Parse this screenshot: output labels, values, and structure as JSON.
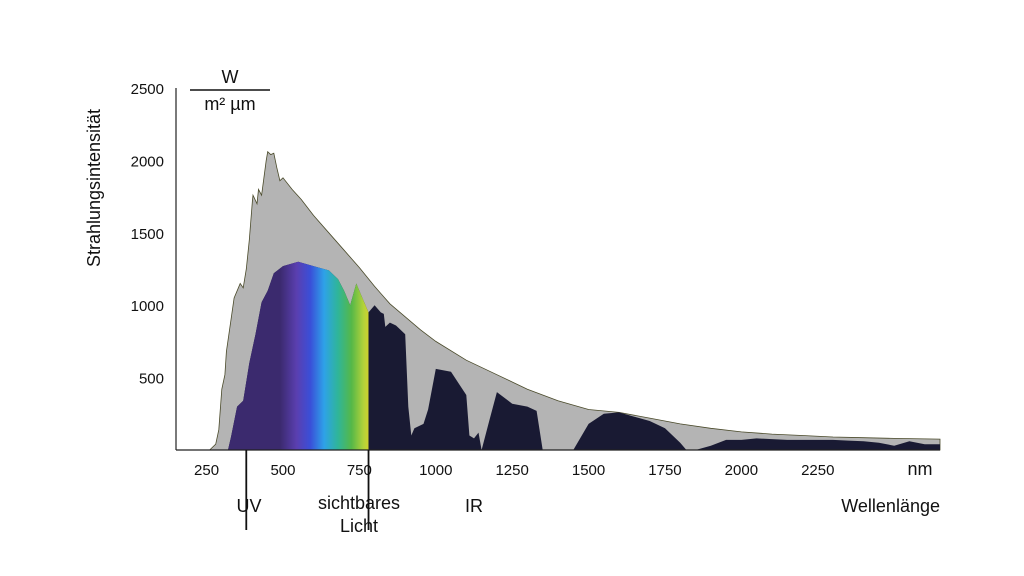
{
  "chart_data": {
    "type": "area",
    "title": "",
    "ylabel": "Strahlungsintensität",
    "yunit_numerator": "W",
    "yunit_denominator": "m² µm",
    "xunit": "nm",
    "xlabel": "Wellenlänge",
    "xlim": [
      150,
      2650
    ],
    "ylim": [
      0,
      2500
    ],
    "xticks": [
      250,
      500,
      750,
      1000,
      1250,
      1500,
      1750,
      2000,
      2250
    ],
    "yticks": [
      500,
      1000,
      1500,
      2000,
      2500
    ],
    "regions": [
      {
        "label": "UV",
        "range": [
          150,
          380
        ]
      },
      {
        "label": "sichtbares Licht",
        "line1": "sichtbares",
        "line2": "Licht",
        "range": [
          380,
          780
        ]
      },
      {
        "label": "IR",
        "range": [
          780,
          2650
        ]
      }
    ],
    "series": [
      {
        "color": "#b4b4b4",
        "x": [
          150,
          260,
          280,
          290,
          300,
          310,
          315,
          330,
          340,
          360,
          370,
          380,
          390,
          400,
          402,
          415,
          420,
          430,
          445,
          450,
          460,
          470,
          480,
          490,
          500,
          530,
          560,
          600,
          650,
          700,
          750,
          800,
          850,
          900,
          950,
          1000,
          1100,
          1200,
          1300,
          1400,
          1500,
          1600,
          1700,
          1800,
          1900,
          2000,
          2100,
          2200,
          2300,
          2400,
          2500,
          2650
        ],
        "values": [
          0,
          0,
          40,
          140,
          420,
          520,
          680,
          900,
          1050,
          1150,
          1120,
          1250,
          1450,
          1720,
          1760,
          1700,
          1800,
          1760,
          2000,
          2060,
          2040,
          2050,
          1950,
          1860,
          1880,
          1800,
          1730,
          1620,
          1500,
          1380,
          1260,
          1130,
          1010,
          920,
          830,
          750,
          620,
          520,
          420,
          340,
          280,
          260,
          220,
          180,
          150,
          125,
          110,
          100,
          90,
          85,
          80,
          75
        ]
      },
      {
        "color": "#191a33",
        "x": [
          150,
          320,
          330,
          350,
          370,
          390,
          410,
          430,
          450,
          470,
          500,
          550,
          600,
          650,
          680,
          700,
          720,
          740,
          760,
          780,
          800,
          820,
          830,
          835,
          850,
          870,
          900,
          910,
          920,
          930,
          960,
          975,
          1000,
          1050,
          1100,
          1110,
          1125,
          1140,
          1150,
          1175,
          1200,
          1250,
          1300,
          1330,
          1350,
          1400,
          1450,
          1500,
          1550,
          1600,
          1650,
          1700,
          1750,
          1800,
          1820,
          1850,
          1900,
          1950,
          2000,
          2050,
          2100,
          2150,
          2200,
          2250,
          2300,
          2350,
          2400,
          2450,
          2500,
          2550,
          2600,
          2650
        ],
        "values": [
          0,
          0,
          90,
          300,
          340,
          600,
          800,
          1020,
          1100,
          1220,
          1270,
          1300,
          1270,
          1240,
          1180,
          1100,
          1000,
          1150,
          1050,
          950,
          1000,
          950,
          940,
          850,
          880,
          860,
          800,
          300,
          100,
          150,
          180,
          280,
          560,
          540,
          380,
          100,
          80,
          120,
          0,
          200,
          400,
          320,
          300,
          270,
          0,
          0,
          0,
          180,
          250,
          260,
          230,
          200,
          150,
          50,
          0,
          0,
          30,
          70,
          70,
          80,
          75,
          70,
          70,
          70,
          70,
          65,
          60,
          50,
          30,
          60,
          40,
          40
        ]
      }
    ]
  }
}
